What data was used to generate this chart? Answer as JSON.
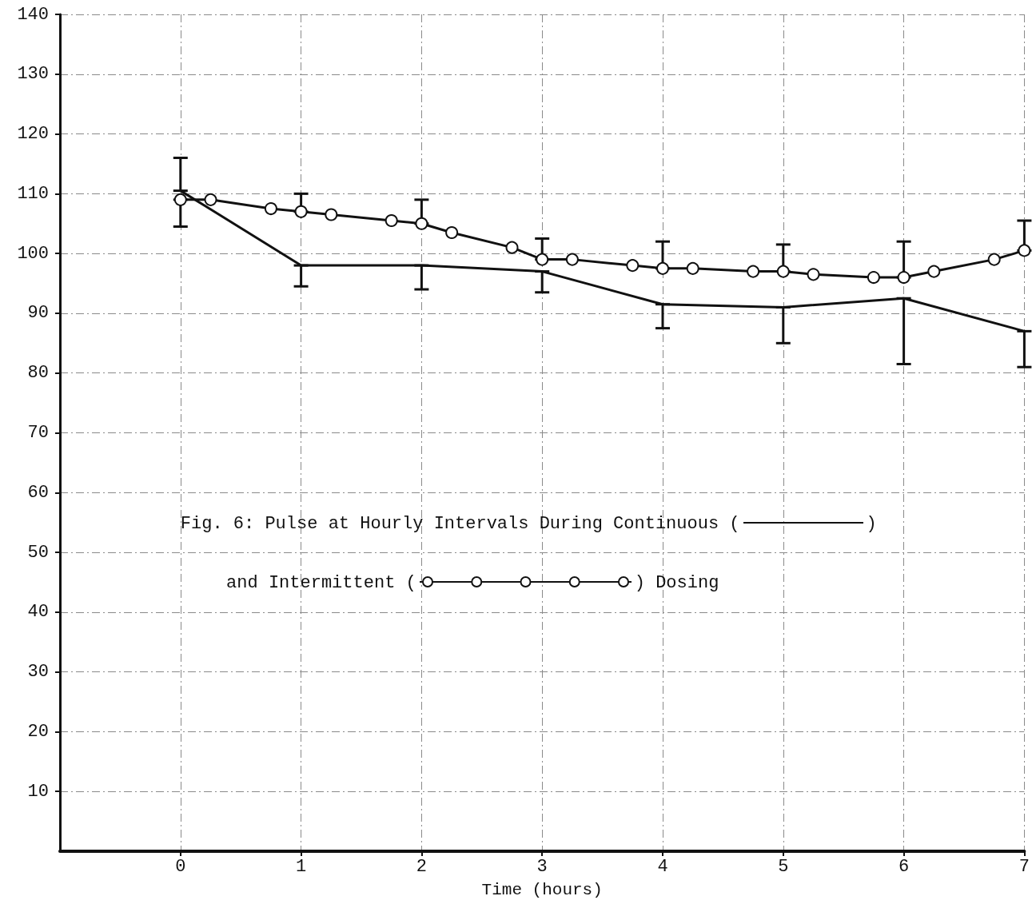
{
  "chart_data": {
    "type": "line",
    "title": "Fig. 6: Pulse at Hourly Intervals During Continuous ( ) and Intermittent ( ) Dosing",
    "xlabel": "Time (hours)",
    "xlim": [
      -1,
      7
    ],
    "xticks": [
      0,
      1,
      2,
      3,
      4,
      5,
      6,
      7
    ],
    "ylim": [
      0,
      140
    ],
    "yticks": [
      10,
      20,
      30,
      40,
      50,
      60,
      70,
      80,
      90,
      100,
      110,
      120,
      130,
      140
    ],
    "grid": true,
    "series": [
      {
        "color": "#111111",
        "marker": "none",
        "x": [
          0,
          1,
          2,
          3,
          4,
          5,
          6,
          7
        ],
        "values": [
          110.5,
          98,
          98,
          97,
          91.5,
          91,
          92.5,
          87
        ],
        "errors": [
          [
            110.5,
            116
          ],
          [
            94.5,
            98
          ],
          [
            94,
            98
          ],
          [
            93.5,
            97
          ],
          [
            87.5,
            91.5
          ],
          [
            85,
            91
          ],
          [
            81.5,
            92.5
          ],
          [
            81,
            87
          ]
        ]
      },
      {
        "color": "#111111",
        "marker": "circle",
        "x": [
          0,
          0.25,
          0.75,
          1,
          1.25,
          1.75,
          2,
          2.25,
          2.75,
          3,
          3.25,
          3.75,
          4,
          4.25,
          4.75,
          5,
          5.25,
          5.75,
          6,
          6.25,
          6.75,
          7
        ],
        "values": [
          109,
          109,
          107.5,
          107,
          106.5,
          105.5,
          105,
          103.5,
          101,
          99,
          99,
          98,
          97.5,
          97.5,
          97,
          97,
          96.5,
          96,
          96,
          97,
          99,
          100.5
        ],
        "errors": [
          [
            104.5,
            109
          ],
          null,
          null,
          [
            107,
            110
          ],
          null,
          null,
          [
            105,
            109
          ],
          null,
          null,
          [
            99,
            102.5
          ],
          null,
          null,
          [
            97.5,
            102
          ],
          null,
          null,
          [
            97,
            101.5
          ],
          null,
          null,
          [
            96,
            102
          ],
          null,
          null,
          [
            100.5,
            105.5
          ]
        ]
      }
    ]
  }
}
